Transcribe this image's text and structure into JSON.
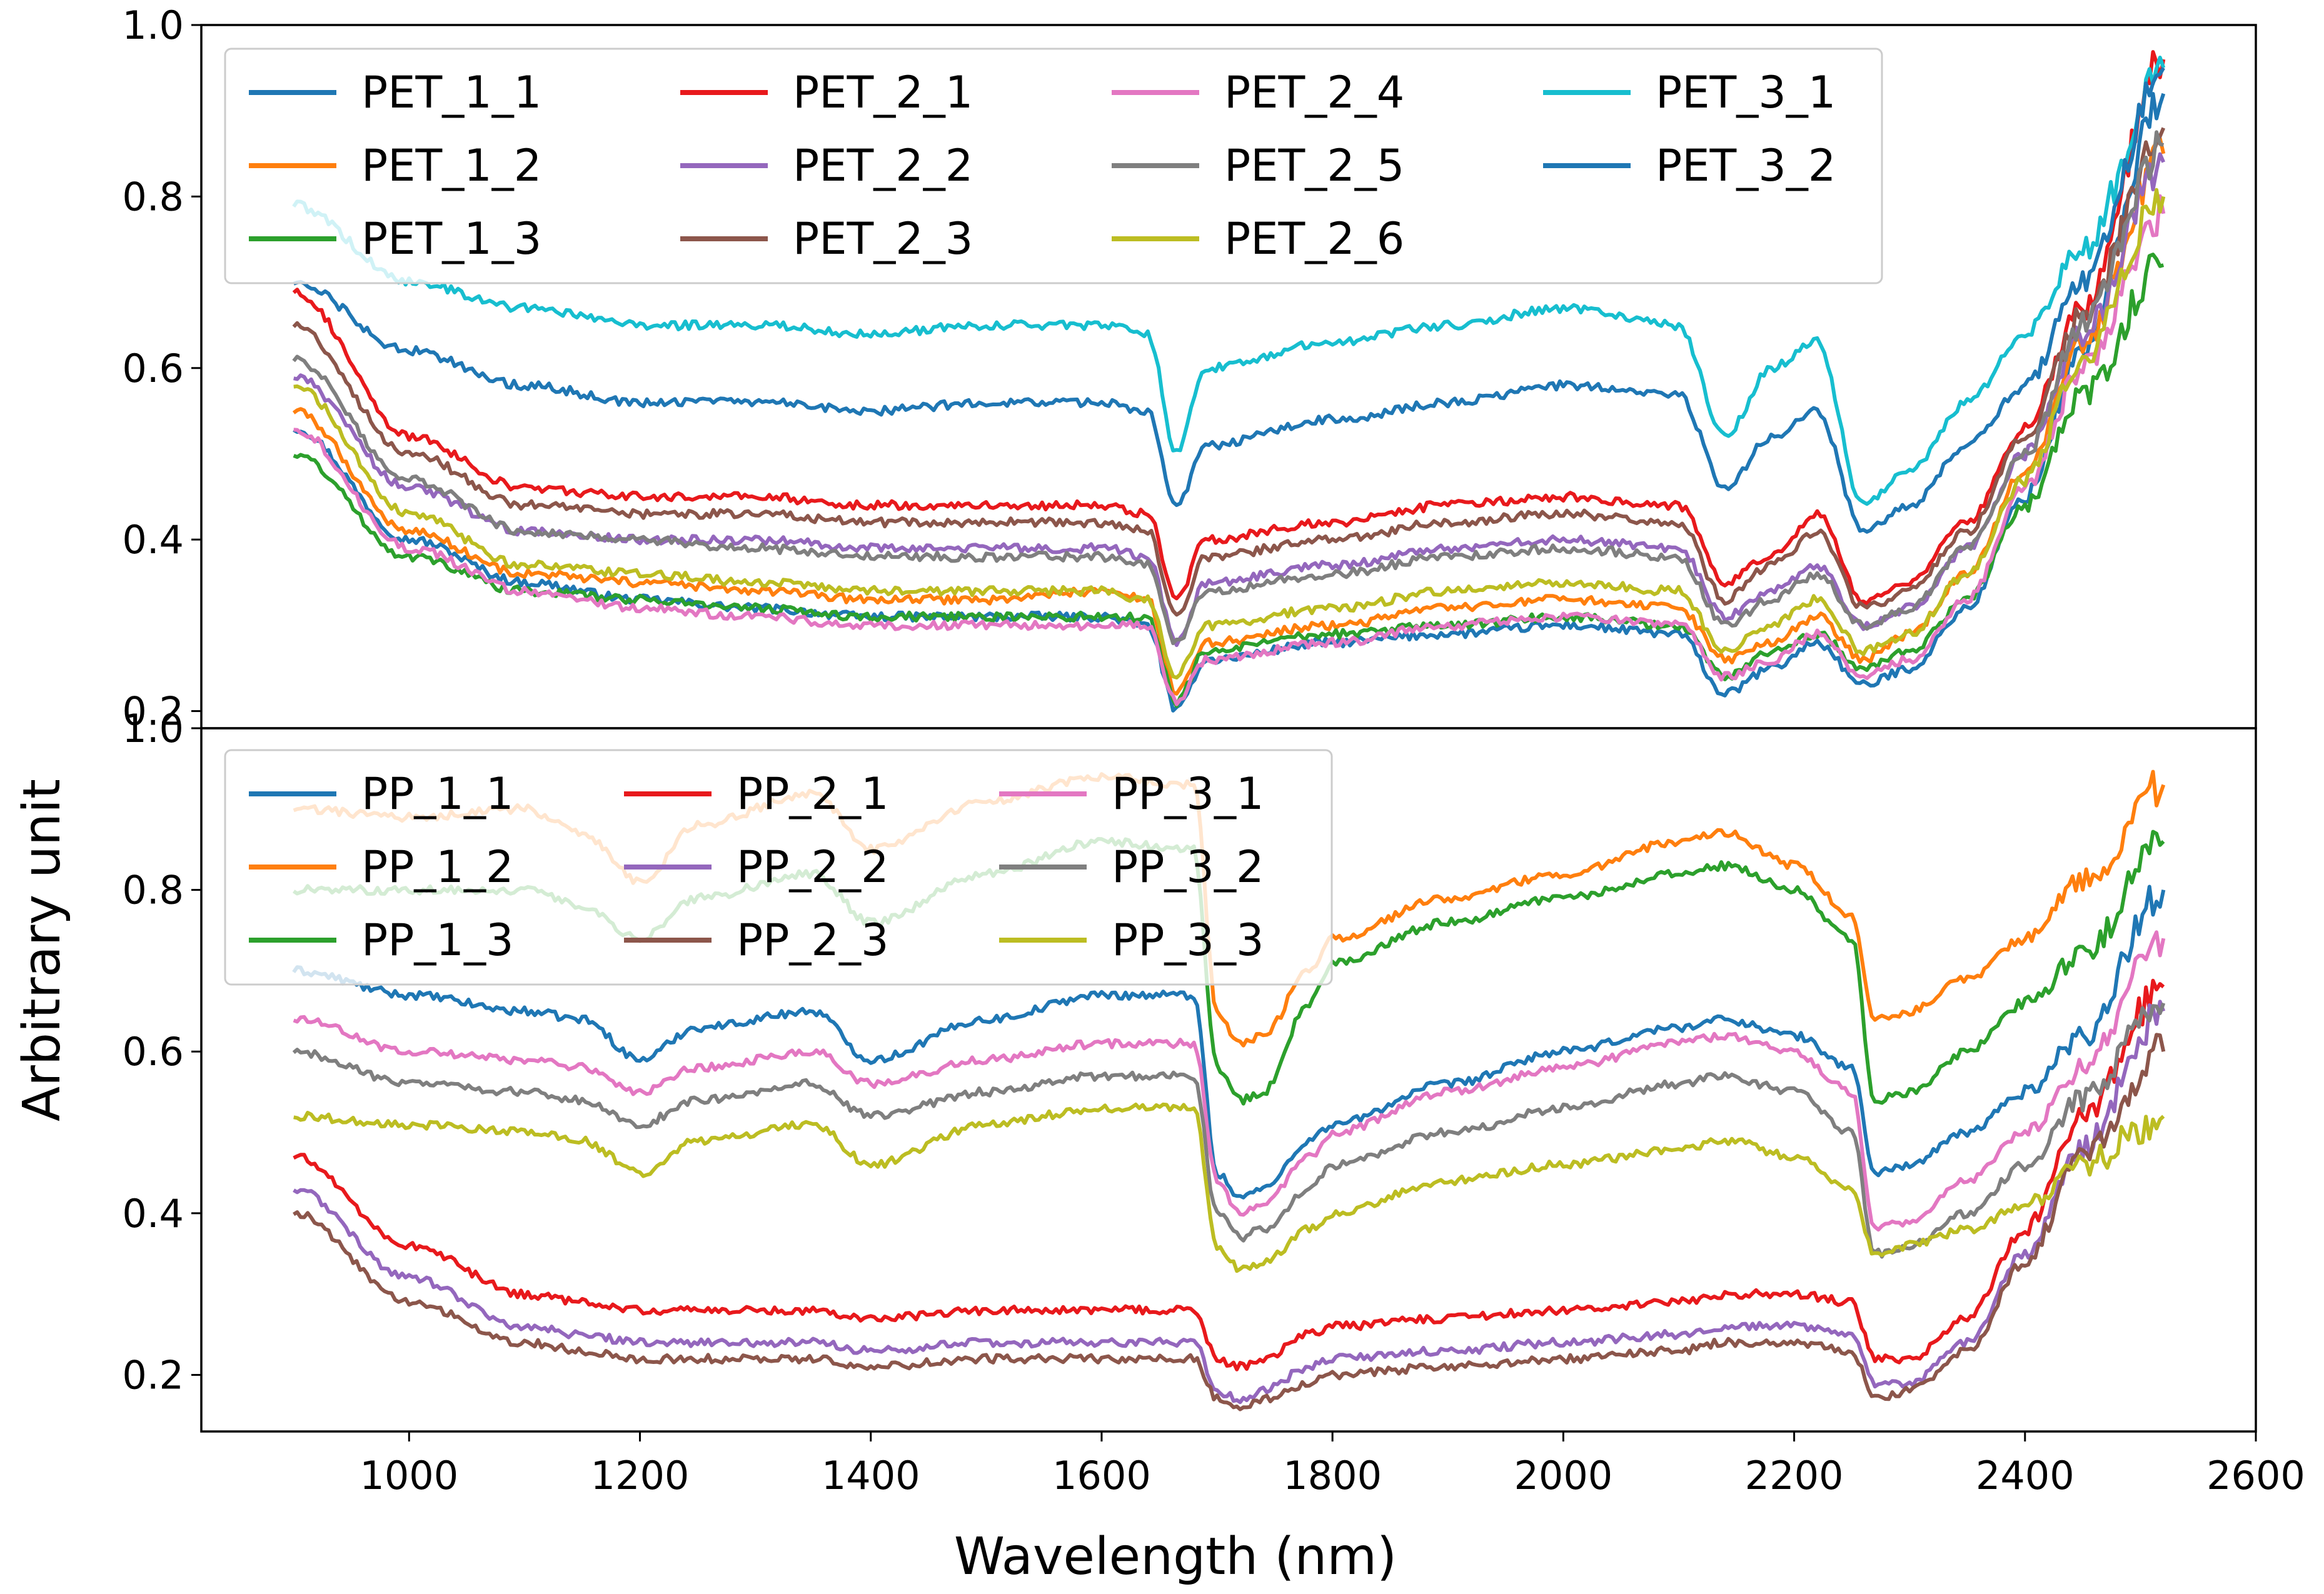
{
  "figure": {
    "xlabel": "Wavelength (nm)",
    "ylabel": "Arbitrary unit"
  },
  "chart_data": [
    {
      "type": "line",
      "panel": "top",
      "title": "",
      "xlabel": "Wavelength (nm)",
      "ylabel": "Arbitrary unit",
      "xlim": [
        820,
        2600
      ],
      "ylim": [
        0.18,
        1.0
      ],
      "xticks": [
        1000,
        1200,
        1400,
        1600,
        1800,
        2000,
        2200,
        2400,
        2600
      ],
      "yticks": [
        0.2,
        0.4,
        0.6,
        0.8,
        1.0
      ],
      "x": [
        900,
        1000,
        1100,
        1200,
        1300,
        1400,
        1500,
        1600,
        1640,
        1665,
        1690,
        1800,
        1900,
        2000,
        2100,
        2140,
        2180,
        2220,
        2260,
        2300,
        2350,
        2400,
        2450,
        2520
      ],
      "legend": {
        "location": "top-left",
        "columns": 4
      },
      "series": [
        {
          "name": "PET_1_1",
          "color": "#1f77b4",
          "values": [
            0.53,
            0.4,
            0.35,
            0.33,
            0.32,
            0.31,
            0.31,
            0.31,
            0.3,
            0.2,
            0.26,
            0.28,
            0.29,
            0.3,
            0.29,
            0.22,
            0.25,
            0.28,
            0.23,
            0.25,
            0.32,
            0.45,
            0.62,
            0.92
          ]
        },
        {
          "name": "PET_1_2",
          "color": "#ff7f0e",
          "values": [
            0.55,
            0.41,
            0.36,
            0.35,
            0.34,
            0.33,
            0.33,
            0.34,
            0.33,
            0.22,
            0.28,
            0.3,
            0.32,
            0.33,
            0.32,
            0.26,
            0.28,
            0.31,
            0.26,
            0.29,
            0.36,
            0.48,
            0.63,
            0.85
          ]
        },
        {
          "name": "PET_1_3",
          "color": "#2ca02c",
          "values": [
            0.5,
            0.38,
            0.34,
            0.33,
            0.32,
            0.31,
            0.31,
            0.31,
            0.31,
            0.21,
            0.27,
            0.29,
            0.3,
            0.31,
            0.3,
            0.24,
            0.27,
            0.29,
            0.25,
            0.27,
            0.33,
            0.44,
            0.57,
            0.72
          ]
        },
        {
          "name": "PET_2_1",
          "color": "#e8191c",
          "values": [
            0.69,
            0.52,
            0.46,
            0.45,
            0.45,
            0.44,
            0.44,
            0.44,
            0.43,
            0.33,
            0.4,
            0.42,
            0.44,
            0.45,
            0.44,
            0.35,
            0.38,
            0.43,
            0.33,
            0.35,
            0.42,
            0.53,
            0.67,
            0.96
          ]
        },
        {
          "name": "PET_2_2",
          "color": "#9467bd",
          "values": [
            0.59,
            0.46,
            0.41,
            0.4,
            0.4,
            0.39,
            0.39,
            0.39,
            0.38,
            0.28,
            0.35,
            0.37,
            0.39,
            0.4,
            0.39,
            0.31,
            0.34,
            0.37,
            0.3,
            0.32,
            0.39,
            0.5,
            0.64,
            0.84
          ]
        },
        {
          "name": "PET_2_3",
          "color": "#8c564b",
          "values": [
            0.65,
            0.5,
            0.44,
            0.43,
            0.43,
            0.42,
            0.42,
            0.42,
            0.41,
            0.31,
            0.38,
            0.4,
            0.42,
            0.43,
            0.42,
            0.33,
            0.37,
            0.41,
            0.32,
            0.34,
            0.41,
            0.52,
            0.66,
            0.88
          ]
        },
        {
          "name": "PET_2_4",
          "color": "#e377c2",
          "values": [
            0.53,
            0.39,
            0.34,
            0.32,
            0.31,
            0.3,
            0.3,
            0.3,
            0.3,
            0.21,
            0.26,
            0.28,
            0.3,
            0.31,
            0.3,
            0.24,
            0.26,
            0.29,
            0.24,
            0.26,
            0.33,
            0.46,
            0.6,
            0.78
          ]
        },
        {
          "name": "PET_2_5",
          "color": "#7f7f7f",
          "values": [
            0.61,
            0.47,
            0.41,
            0.4,
            0.39,
            0.38,
            0.38,
            0.38,
            0.37,
            0.28,
            0.34,
            0.36,
            0.38,
            0.39,
            0.38,
            0.3,
            0.33,
            0.36,
            0.3,
            0.32,
            0.39,
            0.5,
            0.65,
            0.86
          ]
        },
        {
          "name": "PET_2_6",
          "color": "#bcbd22",
          "values": [
            0.58,
            0.43,
            0.37,
            0.36,
            0.35,
            0.34,
            0.34,
            0.34,
            0.33,
            0.24,
            0.3,
            0.32,
            0.34,
            0.35,
            0.34,
            0.27,
            0.3,
            0.33,
            0.27,
            0.29,
            0.36,
            0.47,
            0.61,
            0.8
          ]
        },
        {
          "name": "PET_3_1",
          "color": "#17becf",
          "values": [
            0.79,
            0.7,
            0.67,
            0.65,
            0.65,
            0.64,
            0.65,
            0.65,
            0.64,
            0.5,
            0.6,
            0.63,
            0.65,
            0.67,
            0.65,
            0.52,
            0.6,
            0.63,
            0.44,
            0.48,
            0.56,
            0.64,
            0.74,
            0.95
          ]
        },
        {
          "name": "PET_3_2",
          "color": "#1f77b4",
          "values": [
            0.7,
            0.62,
            0.58,
            0.56,
            0.56,
            0.55,
            0.56,
            0.56,
            0.55,
            0.44,
            0.51,
            0.54,
            0.56,
            0.58,
            0.57,
            0.46,
            0.52,
            0.55,
            0.41,
            0.44,
            0.51,
            0.58,
            0.7,
            0.95
          ]
        }
      ]
    },
    {
      "type": "line",
      "panel": "bottom",
      "title": "",
      "xlabel": "Wavelength (nm)",
      "ylabel": "Arbitrary unit",
      "xlim": [
        820,
        2600
      ],
      "ylim": [
        0.13,
        1.0
      ],
      "xticks": [
        1000,
        1200,
        1400,
        1600,
        1800,
        2000,
        2200,
        2400,
        2600
      ],
      "yticks": [
        0.2,
        0.4,
        0.6,
        0.8,
        1.0
      ],
      "x": [
        900,
        1000,
        1100,
        1150,
        1200,
        1250,
        1350,
        1400,
        1500,
        1600,
        1680,
        1700,
        1720,
        1740,
        1780,
        1800,
        1900,
        2000,
        2100,
        2140,
        2200,
        2250,
        2270,
        2300,
        2350,
        2400,
        2450,
        2520
      ],
      "legend": {
        "location": "top-left",
        "columns": 3
      },
      "series": [
        {
          "name": "PP_1_1",
          "color": "#1f77b4",
          "values": [
            0.7,
            0.67,
            0.65,
            0.64,
            0.59,
            0.63,
            0.65,
            0.59,
            0.64,
            0.67,
            0.67,
            0.45,
            0.42,
            0.43,
            0.49,
            0.51,
            0.56,
            0.6,
            0.63,
            0.64,
            0.62,
            0.58,
            0.45,
            0.46,
            0.5,
            0.55,
            0.62,
            0.8
          ]
        },
        {
          "name": "PP_1_2",
          "color": "#ff7f0e",
          "values": [
            0.9,
            0.89,
            0.9,
            0.87,
            0.81,
            0.88,
            0.92,
            0.85,
            0.91,
            0.94,
            0.93,
            0.65,
            0.61,
            0.62,
            0.7,
            0.74,
            0.79,
            0.82,
            0.86,
            0.87,
            0.83,
            0.77,
            0.64,
            0.65,
            0.69,
            0.74,
            0.81,
            0.93
          ]
        },
        {
          "name": "PP_1_3",
          "color": "#2ca02c",
          "values": [
            0.8,
            0.8,
            0.8,
            0.78,
            0.74,
            0.79,
            0.82,
            0.76,
            0.82,
            0.86,
            0.85,
            0.58,
            0.54,
            0.55,
            0.66,
            0.71,
            0.76,
            0.79,
            0.82,
            0.83,
            0.8,
            0.74,
            0.54,
            0.55,
            0.6,
            0.66,
            0.72,
            0.86
          ]
        },
        {
          "name": "PP_2_1",
          "color": "#e8191c",
          "values": [
            0.47,
            0.36,
            0.3,
            0.29,
            0.28,
            0.28,
            0.28,
            0.27,
            0.28,
            0.28,
            0.28,
            0.22,
            0.21,
            0.22,
            0.25,
            0.26,
            0.27,
            0.28,
            0.29,
            0.3,
            0.3,
            0.29,
            0.22,
            0.22,
            0.27,
            0.38,
            0.52,
            0.68
          ]
        },
        {
          "name": "PP_2_2",
          "color": "#9467bd",
          "values": [
            0.43,
            0.32,
            0.26,
            0.25,
            0.24,
            0.24,
            0.24,
            0.23,
            0.24,
            0.24,
            0.24,
            0.18,
            0.17,
            0.18,
            0.21,
            0.22,
            0.23,
            0.24,
            0.25,
            0.26,
            0.26,
            0.25,
            0.19,
            0.19,
            0.24,
            0.35,
            0.48,
            0.65
          ]
        },
        {
          "name": "PP_2_3",
          "color": "#8c564b",
          "values": [
            0.4,
            0.29,
            0.24,
            0.23,
            0.22,
            0.22,
            0.22,
            0.21,
            0.22,
            0.22,
            0.22,
            0.17,
            0.16,
            0.17,
            0.19,
            0.2,
            0.21,
            0.22,
            0.23,
            0.24,
            0.24,
            0.23,
            0.17,
            0.18,
            0.23,
            0.34,
            0.47,
            0.6
          ]
        },
        {
          "name": "PP_3_1",
          "color": "#e377c2",
          "values": [
            0.64,
            0.6,
            0.59,
            0.58,
            0.55,
            0.58,
            0.6,
            0.56,
            0.59,
            0.61,
            0.61,
            0.44,
            0.4,
            0.41,
            0.47,
            0.5,
            0.55,
            0.58,
            0.61,
            0.62,
            0.6,
            0.55,
            0.38,
            0.39,
            0.44,
            0.5,
            0.58,
            0.74
          ]
        },
        {
          "name": "PP_3_2",
          "color": "#7f7f7f",
          "values": [
            0.6,
            0.56,
            0.55,
            0.54,
            0.51,
            0.54,
            0.56,
            0.52,
            0.55,
            0.57,
            0.57,
            0.4,
            0.37,
            0.38,
            0.43,
            0.46,
            0.5,
            0.53,
            0.56,
            0.57,
            0.55,
            0.5,
            0.35,
            0.36,
            0.4,
            0.46,
            0.54,
            0.66
          ]
        },
        {
          "name": "PP_3_3",
          "color": "#bcbd22",
          "values": [
            0.52,
            0.51,
            0.5,
            0.49,
            0.45,
            0.49,
            0.51,
            0.46,
            0.51,
            0.53,
            0.53,
            0.36,
            0.33,
            0.34,
            0.38,
            0.4,
            0.44,
            0.46,
            0.48,
            0.49,
            0.47,
            0.43,
            0.35,
            0.36,
            0.38,
            0.41,
            0.46,
            0.52
          ]
        }
      ]
    }
  ]
}
